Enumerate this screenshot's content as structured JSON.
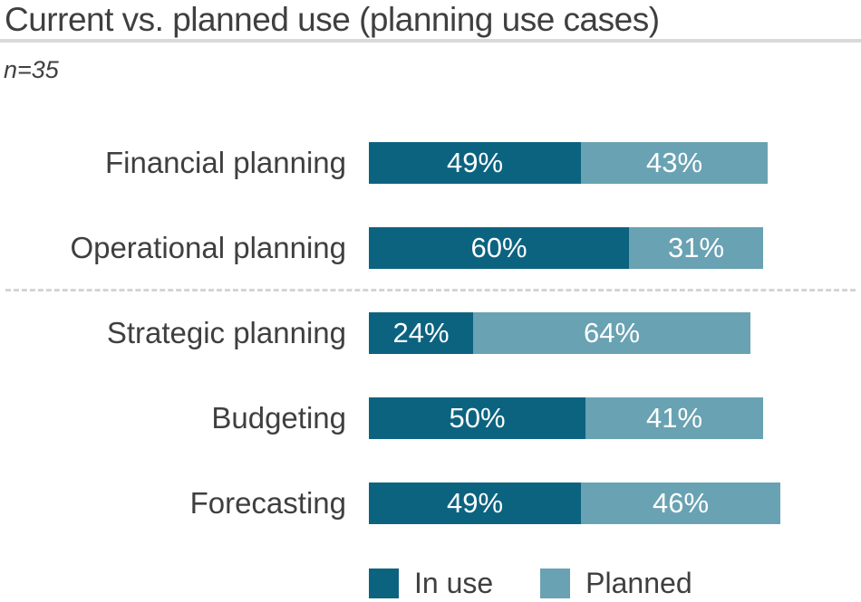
{
  "title": "Current vs. planned use (planning use cases)",
  "sample_note": "n=35",
  "colors": {
    "in_use": "#0c6380",
    "planned": "#69a2b2",
    "text": "#3f3f3f",
    "title_rule": "#d9d9d9",
    "dashed_divider": "#d4d4d4",
    "bar_value_text": "#ffffff"
  },
  "legend": {
    "in_use_label": "In use",
    "planned_label": "Planned"
  },
  "chart_data": {
    "type": "bar",
    "orientation": "horizontal",
    "stacked": true,
    "unit": "%",
    "title": "Current vs. planned use (planning use cases)",
    "subtitle": "n=35",
    "categories": [
      "Financial planning",
      "Operational planning",
      "Strategic planning",
      "Budgeting",
      "Forecasting"
    ],
    "series": [
      {
        "name": "In use",
        "color": "#0c6380",
        "values": [
          49,
          60,
          24,
          50,
          49
        ]
      },
      {
        "name": "Planned",
        "color": "#69a2b2",
        "values": [
          43,
          31,
          64,
          41,
          46
        ]
      }
    ],
    "data_labels": [
      [
        "49%",
        "43%"
      ],
      [
        "60%",
        "31%"
      ],
      [
        "24%",
        "64%"
      ],
      [
        "50%",
        "41%"
      ],
      [
        "49%",
        "46%"
      ]
    ],
    "xlim": [
      0,
      100
    ],
    "axes_visible": false,
    "grid": false,
    "legend_position": "bottom",
    "divider_after_category_index": 1
  }
}
